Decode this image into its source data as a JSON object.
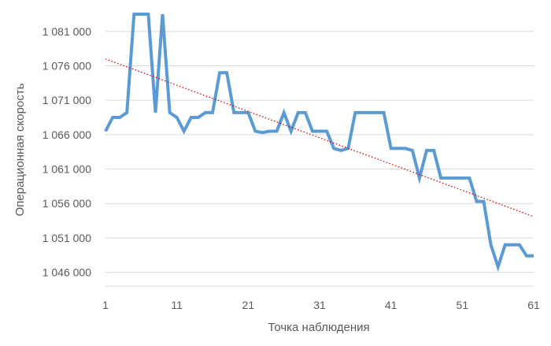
{
  "chart_data": {
    "type": "line",
    "title": "",
    "xlabel": "Точка наблюдения",
    "ylabel": "Операционная скорость",
    "xlim": [
      1,
      61
    ],
    "ylim": [
      1044000,
      1083500
    ],
    "xticks": [
      1,
      11,
      21,
      31,
      41,
      51,
      61
    ],
    "xtick_labels": [
      "1",
      "11",
      "21",
      "31",
      "41",
      "51",
      "61"
    ],
    "yticks": [
      1046000,
      1051000,
      1056000,
      1061000,
      1066000,
      1071000,
      1076000,
      1081000
    ],
    "ytick_labels": [
      "1 046 000",
      "1 051 000",
      "1 056 000",
      "1 061 000",
      "1 066 000",
      "1 071 000",
      "1 076 000",
      "1 081 000"
    ],
    "grid": "horizontal",
    "legend": "none",
    "series": [
      {
        "color": "#5b9bd5",
        "x": [
          1,
          2,
          3,
          4,
          5,
          6,
          7,
          8,
          9,
          10,
          11,
          12,
          13,
          14,
          15,
          16,
          17,
          18,
          19,
          20,
          21,
          22,
          23,
          24,
          25,
          26,
          27,
          28,
          29,
          30,
          31,
          32,
          33,
          34,
          35,
          36,
          37,
          38,
          39,
          40,
          41,
          42,
          43,
          44,
          45,
          46,
          47,
          48,
          49,
          50,
          51,
          52,
          53,
          54,
          55,
          56,
          57,
          58,
          59,
          60,
          61
        ],
        "values": [
          1066500,
          1068500,
          1068500,
          1069200,
          1083500,
          1083500,
          1083500,
          1069200,
          1083500,
          1069200,
          1068500,
          1066500,
          1068500,
          1068500,
          1069200,
          1069200,
          1075000,
          1075000,
          1069200,
          1069200,
          1069200,
          1066500,
          1066300,
          1066500,
          1066500,
          1069200,
          1066500,
          1069200,
          1069200,
          1066500,
          1066500,
          1066500,
          1064000,
          1063700,
          1064000,
          1069200,
          1069200,
          1069200,
          1069200,
          1069200,
          1064000,
          1064000,
          1064000,
          1063700,
          1059700,
          1063700,
          1063700,
          1059700,
          1059700,
          1059700,
          1059700,
          1059700,
          1056300,
          1056300,
          1050000,
          1046800,
          1050000,
          1050000,
          1050000,
          1048400,
          1048400
        ]
      },
      {
        "style": "trendline-dotted",
        "color": "#e00000",
        "x": [
          1,
          61
        ],
        "values": [
          1077000,
          1054100
        ]
      }
    ]
  }
}
